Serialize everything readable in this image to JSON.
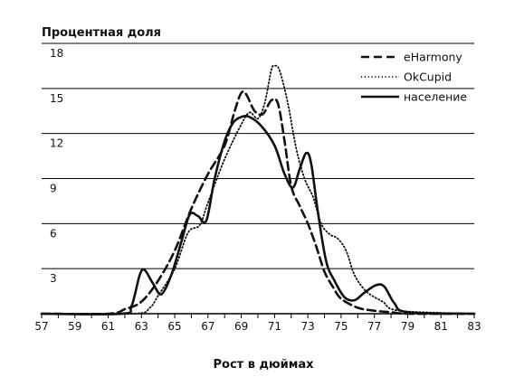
{
  "chart_data": {
    "type": "line",
    "ylabel": "Процентная доля",
    "xlabel": "Рост в дюймах",
    "xlim": [
      57,
      83
    ],
    "ylim": [
      0,
      18
    ],
    "xticks": [
      57,
      59,
      61,
      63,
      65,
      67,
      69,
      71,
      73,
      75,
      77,
      79,
      81,
      83
    ],
    "yticks": [
      3,
      6,
      9,
      12,
      15,
      18
    ],
    "grid": "horizontal",
    "legend_position": "top-right",
    "series": [
      {
        "name": "eHarmony",
        "style": "dashed",
        "points": [
          [
            57,
            0
          ],
          [
            61,
            0
          ],
          [
            62,
            0.3
          ],
          [
            63,
            0.8
          ],
          [
            64,
            2.2
          ],
          [
            65,
            4.2
          ],
          [
            66,
            7.0
          ],
          [
            67,
            9.3
          ],
          [
            68,
            11.2
          ],
          [
            68.6,
            13.5
          ],
          [
            69,
            14.7
          ],
          [
            69.3,
            14.6
          ],
          [
            69.8,
            13.5
          ],
          [
            70.3,
            13.3
          ],
          [
            70.8,
            14.2
          ],
          [
            71.2,
            14.0
          ],
          [
            71.6,
            11.5
          ],
          [
            72,
            8.5
          ],
          [
            72.5,
            7.2
          ],
          [
            73,
            6.0
          ],
          [
            73.5,
            4.5
          ],
          [
            74,
            2.8
          ],
          [
            74.5,
            1.8
          ],
          [
            75,
            1.0
          ],
          [
            76,
            0.4
          ],
          [
            77,
            0.2
          ],
          [
            78,
            0.1
          ],
          [
            79,
            0
          ],
          [
            83,
            0
          ]
        ]
      },
      {
        "name": "OkCupid",
        "style": "dotted",
        "points": [
          [
            57,
            0
          ],
          [
            62.5,
            0
          ],
          [
            63.5,
            0.4
          ],
          [
            64,
            1.2
          ],
          [
            65,
            3.0
          ],
          [
            65.8,
            5.4
          ],
          [
            66.5,
            5.9
          ],
          [
            67,
            7.4
          ],
          [
            68,
            10.3
          ],
          [
            69,
            12.6
          ],
          [
            69.5,
            13.4
          ],
          [
            70,
            13.0
          ],
          [
            70.4,
            14.0
          ],
          [
            70.8,
            16.2
          ],
          [
            71,
            16.5
          ],
          [
            71.3,
            16.2
          ],
          [
            71.8,
            14.0
          ],
          [
            72.3,
            11.0
          ],
          [
            72.8,
            9.0
          ],
          [
            73.3,
            7.8
          ],
          [
            73.8,
            6.0
          ],
          [
            74.3,
            5.3
          ],
          [
            74.8,
            5.0
          ],
          [
            75.3,
            4.2
          ],
          [
            75.8,
            2.6
          ],
          [
            76.5,
            1.5
          ],
          [
            77.5,
            0.8
          ],
          [
            78.5,
            0.2
          ],
          [
            83,
            0
          ]
        ]
      },
      {
        "name": "население",
        "style": "solid",
        "points": [
          [
            57,
            0
          ],
          [
            61.8,
            0
          ],
          [
            62.4,
            0.5
          ],
          [
            62.9,
            2.6
          ],
          [
            63.2,
            2.9
          ],
          [
            63.7,
            2.0
          ],
          [
            64.2,
            1.3
          ],
          [
            64.8,
            2.6
          ],
          [
            65.4,
            4.8
          ],
          [
            65.9,
            6.6
          ],
          [
            66.4,
            6.5
          ],
          [
            66.9,
            6.2
          ],
          [
            67.4,
            9.0
          ],
          [
            68,
            11.5
          ],
          [
            68.5,
            12.7
          ],
          [
            69,
            13.1
          ],
          [
            69.5,
            13.1
          ],
          [
            70.2,
            12.5
          ],
          [
            71,
            11.2
          ],
          [
            71.6,
            9.3
          ],
          [
            72.1,
            8.4
          ],
          [
            72.5,
            9.6
          ],
          [
            72.9,
            10.7
          ],
          [
            73.2,
            10.0
          ],
          [
            73.6,
            6.8
          ],
          [
            74.1,
            3.5
          ],
          [
            74.6,
            2.2
          ],
          [
            75.2,
            1.1
          ],
          [
            75.8,
            0.9
          ],
          [
            76.4,
            1.4
          ],
          [
            77.1,
            1.9
          ],
          [
            77.6,
            1.8
          ],
          [
            78.2,
            0.7
          ],
          [
            79,
            0.1
          ],
          [
            83,
            0
          ]
        ]
      }
    ]
  }
}
